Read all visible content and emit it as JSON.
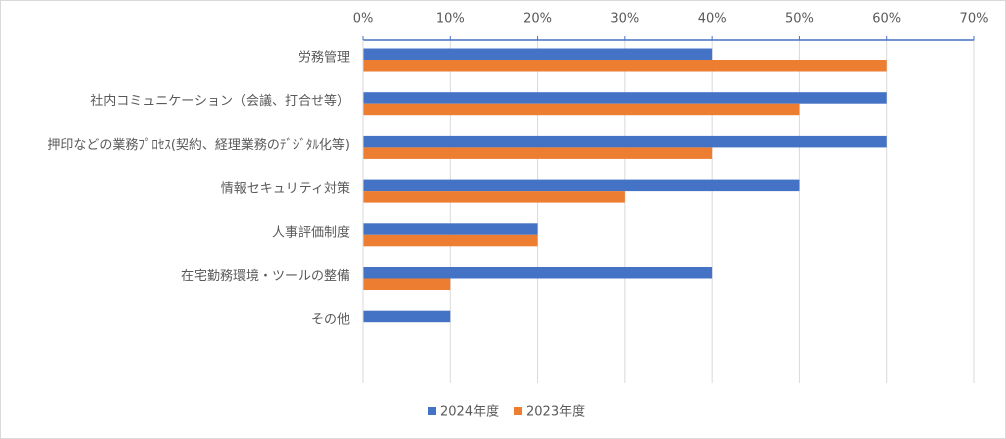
{
  "chart_data": {
    "type": "bar",
    "orientation": "horizontal",
    "categories": [
      "労務管理",
      "社内コミュニケーション（会議、打合せ等）",
      "押印などの業務ﾌﾟﾛｾｽ(契約、経理業務のﾃﾞｼﾞﾀﾙ化等)",
      "情報セキュリティ対策",
      "人事評価制度",
      "在宅勤務環境・ツールの整備",
      "その他"
    ],
    "series": [
      {
        "name": "2024年度",
        "color": "#4472c4",
        "values": [
          40,
          60,
          60,
          50,
          20,
          40,
          10
        ]
      },
      {
        "name": "2023年度",
        "color": "#ed7d31",
        "values": [
          60,
          50,
          40,
          30,
          20,
          10,
          0
        ]
      }
    ],
    "xlim": [
      0,
      70
    ],
    "xticks": [
      {
        "value": 0,
        "label": "0%"
      },
      {
        "value": 10,
        "label": "10%"
      },
      {
        "value": 20,
        "label": "20%"
      },
      {
        "value": 30,
        "label": "30%"
      },
      {
        "value": 40,
        "label": "40%"
      },
      {
        "value": 50,
        "label": "50%"
      },
      {
        "value": 60,
        "label": "60%"
      },
      {
        "value": 70,
        "label": "70%"
      }
    ],
    "grid": true,
    "legend": "bottom"
  }
}
